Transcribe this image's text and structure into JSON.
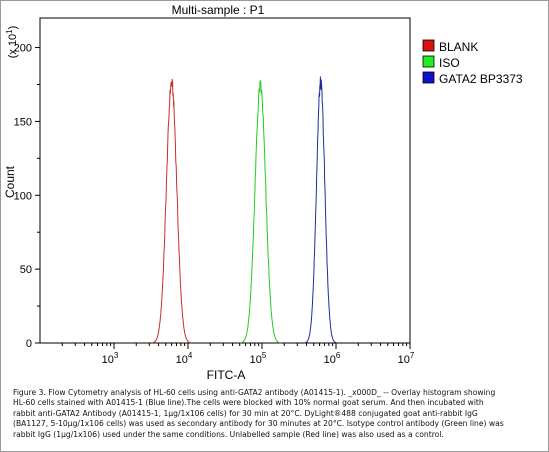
{
  "chart_data": {
    "type": "area",
    "title": "Multi-sample : P1",
    "xlabel": "FITC-A",
    "ylabel": "Count",
    "y_multiplier": "(x 10^1)",
    "x_scale": "log",
    "xlim": [
      100,
      10000000
    ],
    "ylim": [
      0,
      220
    ],
    "x_ticks": [
      {
        "value": 1000,
        "base": "10",
        "exp": "3"
      },
      {
        "value": 10000,
        "base": "10",
        "exp": "4"
      },
      {
        "value": 100000,
        "base": "10",
        "exp": "5"
      },
      {
        "value": 1000000,
        "base": "10",
        "exp": "6"
      },
      {
        "value": 10000000,
        "base": "10",
        "exp": "7"
      }
    ],
    "y_ticks": [
      {
        "value": 0,
        "label": "0"
      },
      {
        "value": 50,
        "label": "50"
      },
      {
        "value": 100,
        "label": "100"
      },
      {
        "value": 150,
        "label": "150"
      },
      {
        "value": 200,
        "label": "200"
      }
    ],
    "legend_position": "top-right",
    "series": [
      {
        "name": "BLANK",
        "color": "#cc2b2b",
        "legend_fill": "#dd1111",
        "peak_x": 6000,
        "peak_y": 176,
        "width_log10": 0.07
      },
      {
        "name": "ISO",
        "color": "#22cc22",
        "legend_fill": "#22ee22",
        "peak_x": 95000,
        "peak_y": 174,
        "width_log10": 0.072
      },
      {
        "name": "GATA2 BP3373",
        "color": "#1e2e9a",
        "legend_fill": "#1111cc",
        "peak_x": 620000,
        "peak_y": 176,
        "width_log10": 0.057
      }
    ]
  },
  "caption": {
    "lines": [
      "Figure 3. Flow Cytometry analysis of HL-60 cells using anti-GATA2 antibody (A01415-1). _x000D_ -- Overlay histogram showing",
      "HL-60 cells stained with A01415-1 (Blue line).The cells were blocked with 10% normal goat serum. And then incubated with",
      "rabbit anti-GATA2 Antibody (A01415-1, 1μg/1x106 cells) for 30 min at 20°C. DyLight®488 conjugated goat anti-rabbit IgG",
      "(BA1127, 5-10μg/1x106 cells) was used as secondary antibody for 30 minutes at 20°C. Isotype control antibody (Green line) was",
      "rabbit IgG (1μg/1x106) used under the same conditions. Unlabelled sample (Red line) was also used as a control."
    ]
  }
}
